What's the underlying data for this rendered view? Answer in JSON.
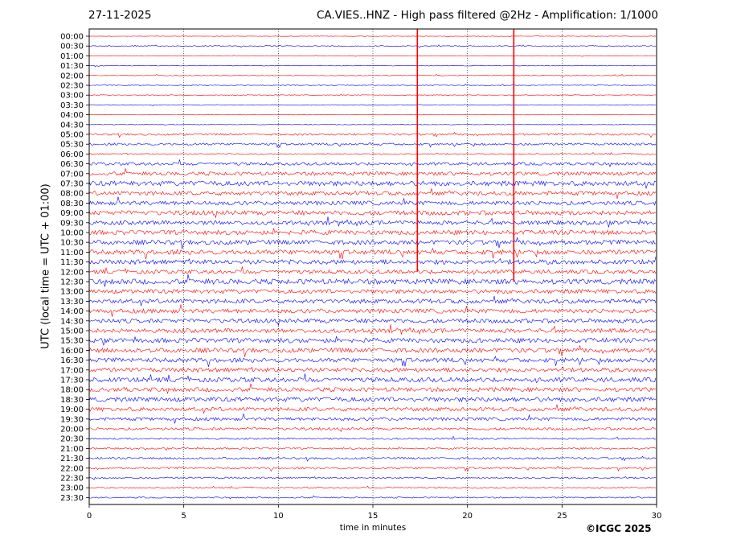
{
  "header": {
    "date": "27-11-2025",
    "title": "CA.VIES..HNZ - High pass filtered @2Hz - Amplification: 1/1000"
  },
  "footer": {
    "copyright": "©ICGC 2025"
  },
  "colors": {
    "red": "#ff0000",
    "blue": "#0000ff",
    "grid": "#000000"
  },
  "chart_data": {
    "type": "line",
    "title": "CA.VIES..HNZ - High pass filtered @2Hz - Amplification: 1/1000",
    "xlabel": "time in minutes",
    "ylabel": "UTC (local time = UTC + 01:00)",
    "xlim": [
      0,
      30
    ],
    "xticks": [
      0,
      5,
      10,
      15,
      20,
      25,
      30
    ],
    "row_labels": [
      "00:00",
      "00:30",
      "01:00",
      "01:30",
      "02:00",
      "02:30",
      "03:00",
      "03:30",
      "04:00",
      "04:30",
      "05:00",
      "05:30",
      "06:00",
      "06:30",
      "07:00",
      "07:30",
      "08:00",
      "08:30",
      "09:00",
      "09:30",
      "10:00",
      "10:30",
      "11:00",
      "11:30",
      "12:00",
      "12:30",
      "13:00",
      "13:30",
      "14:00",
      "14:30",
      "15:00",
      "15:30",
      "16:00",
      "16:30",
      "17:00",
      "17:30",
      "18:00",
      "18:30",
      "19:00",
      "19:30",
      "20:00",
      "20:30",
      "21:00",
      "21:30",
      "22:00",
      "22:30",
      "23:00",
      "23:30"
    ],
    "row_colors": [
      "red",
      "blue",
      "red",
      "blue",
      "red",
      "blue",
      "red",
      "blue",
      "red",
      "blue",
      "red",
      "blue",
      "red",
      "blue",
      "red",
      "blue",
      "red",
      "blue",
      "red",
      "blue",
      "red",
      "blue",
      "red",
      "blue",
      "red",
      "blue",
      "red",
      "blue",
      "red",
      "blue",
      "red",
      "blue",
      "red",
      "blue",
      "red",
      "blue",
      "red",
      "blue",
      "red",
      "blue",
      "red",
      "blue",
      "red",
      "blue",
      "red",
      "blue",
      "red",
      "blue"
    ],
    "noise_level": [
      0.3,
      0.6,
      0.3,
      0.4,
      0.5,
      0.5,
      0.5,
      0.5,
      0.2,
      0.4,
      1.2,
      1.3,
      0.8,
      1.8,
      2.2,
      3.0,
      2.5,
      2.5,
      2.8,
      2.5,
      2.8,
      2.8,
      2.8,
      2.8,
      2.4,
      3.2,
      2.6,
      2.6,
      2.6,
      2.6,
      2.6,
      2.8,
      2.8,
      2.6,
      2.6,
      2.8,
      2.6,
      2.8,
      2.4,
      2.0,
      1.6,
      1.0,
      1.0,
      1.2,
      1.2,
      1.0,
      0.8,
      0.8
    ],
    "vertical_spikes": [
      {
        "minute": 17.35,
        "from_row": "00:00",
        "to_row": "12:00",
        "color": "red"
      },
      {
        "minute": 22.45,
        "from_row": "00:00",
        "to_row": "12:30",
        "color": "red"
      }
    ],
    "grid": true,
    "grid_style": "dotted vertical"
  }
}
